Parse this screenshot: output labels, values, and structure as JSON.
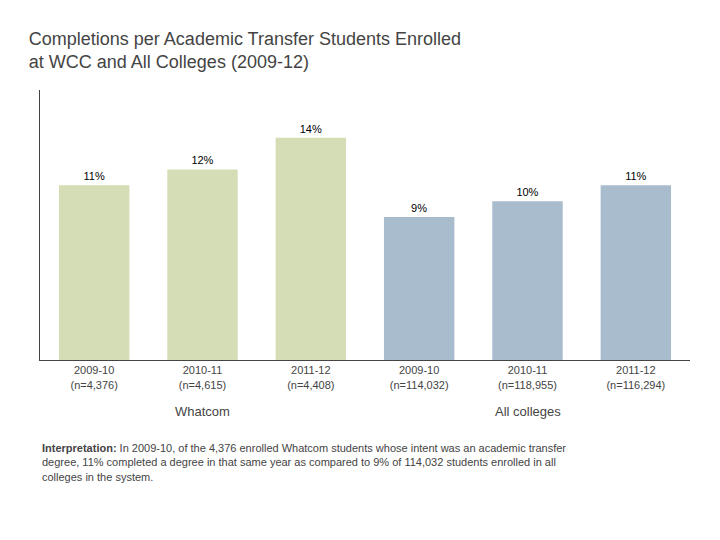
{
  "chart_data": {
    "type": "bar",
    "title": "Completions per Academic Transfer Students Enrolled\nat WCC and All Colleges (2009-12)",
    "categories": [
      "2009-10\n(n=4,376)",
      "2010-11\n(n=4,615)",
      "2011-12\n(n=4,408)",
      "2009-10\n(n=114,032)",
      "2010-11\n(n=118,955)",
      "2011-12\n(n=116,294)"
    ],
    "groups": [
      "Whatcom",
      "Whatcom",
      "Whatcom",
      "All colleges",
      "All colleges",
      "All colleges"
    ],
    "values": [
      11,
      12,
      14,
      9,
      10,
      11
    ],
    "value_labels": [
      "11%",
      "12%",
      "14%",
      "9%",
      "10%",
      "11%"
    ],
    "colors": [
      "#d4ddb5",
      "#d4ddb5",
      "#d4ddb5",
      "#a8bccd",
      "#a8bccd",
      "#a8bccd"
    ],
    "data_labels": true,
    "ylim": [
      0,
      17
    ],
    "yticks": [],
    "tick_labels": "x",
    "grid": false,
    "annotations": [
      "Interpretation:",
      " In 2009-10, of the 4,376 enrolled Whatcom students whose intent was an academic transfer\ndegree, 11% completed a degree in that same year as compared to 9% of 114,032 students enrolled in all\ncolleges in the system."
    ]
  }
}
